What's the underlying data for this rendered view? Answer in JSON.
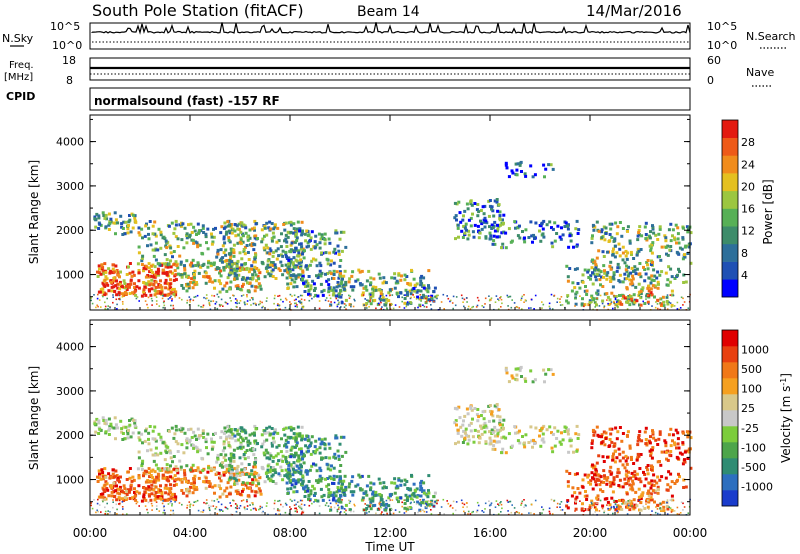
{
  "header": {
    "station": "South Pole Station (fitACF)",
    "beam": "Beam 14",
    "date": "14/Mar/2016"
  },
  "top_panels": {
    "nsky_label": "N.Sky",
    "nsearch_label": "N.Search",
    "nsky_ticks": [
      "10^5",
      "10^0"
    ],
    "nsearch_ticks": [
      "10^5",
      "10^0"
    ],
    "freq_label": "Freq.",
    "freq_unit": "[MHz]",
    "freq_ticks": [
      "18",
      "8"
    ],
    "nave_label": "Nave",
    "nave_ticks": [
      "60",
      "0"
    ],
    "cpid_label": "CPID",
    "cpid_text": "normalsound (fast) -157 RF"
  },
  "chart_data": [
    {
      "type": "heatmap",
      "name": "power",
      "ylabel": "Slant Range [km]",
      "ylim": [
        200,
        4600
      ],
      "y_ticks": [
        "1000",
        "2000",
        "3000",
        "4000"
      ],
      "colorbar": {
        "label": "Power [dB]",
        "ticks": [
          "4",
          "8",
          "12",
          "16",
          "20",
          "24",
          "28"
        ],
        "colors": [
          "#0000ff",
          "#1f50b4",
          "#2d6f9a",
          "#3d8c6a",
          "#57b056",
          "#9cc640",
          "#e4c020",
          "#f08c1c",
          "#ee5a18",
          "#e31a10"
        ]
      }
    },
    {
      "type": "heatmap",
      "name": "velocity",
      "xlabel": "Time UT",
      "ylabel": "Slant Range [km]",
      "ylim": [
        200,
        4600
      ],
      "y_ticks": [
        "1000",
        "2000",
        "3000",
        "4000"
      ],
      "x_ticks": [
        "00:00",
        "04:00",
        "08:00",
        "12:00",
        "16:00",
        "20:00",
        "00:00"
      ],
      "colorbar": {
        "label": "Velocity [m s^-1]",
        "ticks": [
          "1000",
          "500",
          "100",
          "25",
          "-25",
          "-100",
          "-500",
          "-1000"
        ],
        "colors": [
          "#1a3ccc",
          "#2d6fbf",
          "#2f8c73",
          "#4da54a",
          "#7ccc3c",
          "#c8c8c8",
          "#d8c88a",
          "#f5a020",
          "#f07818",
          "#e84010",
          "#e00000"
        ]
      }
    }
  ]
}
